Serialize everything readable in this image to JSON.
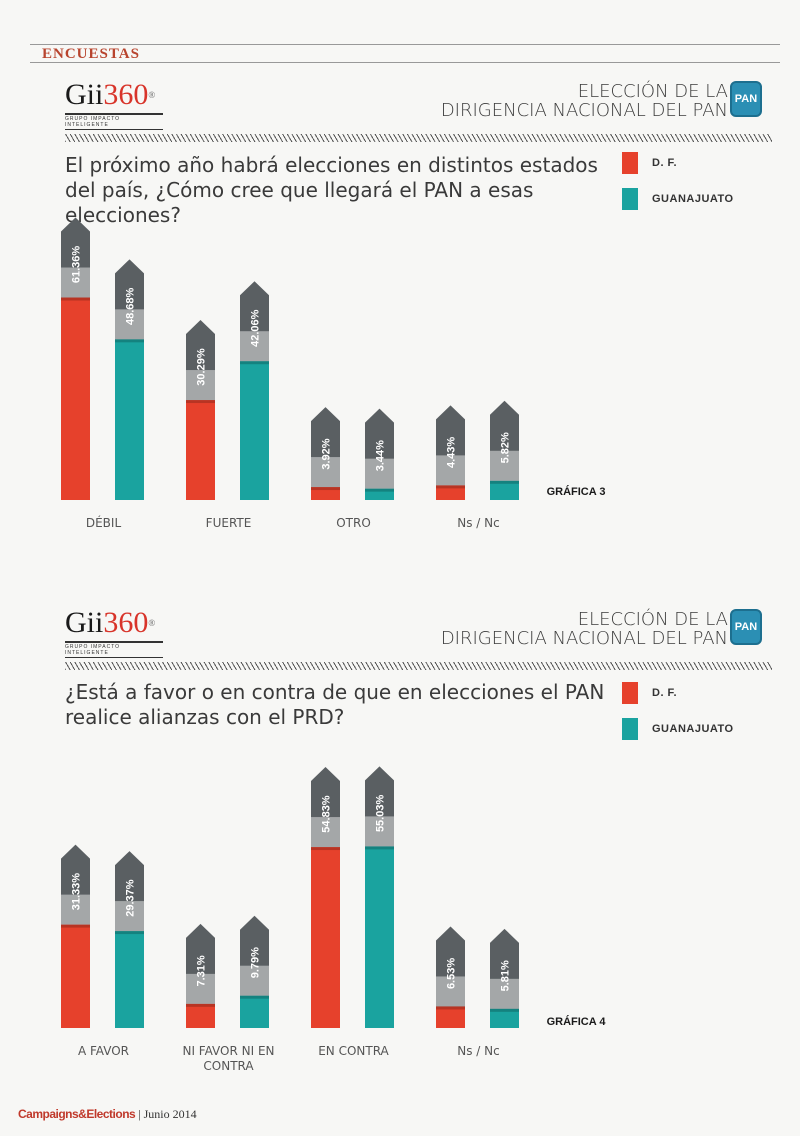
{
  "section": "ENCUESTAS",
  "colors": {
    "df": "#e6412c",
    "guanajuato": "#1aa39f",
    "tag": "#5a5f62"
  },
  "panels": [
    {
      "logo": {
        "brand_a": "Gii",
        "brand_b": "360",
        "reg": "®",
        "sub": "GRUPO IMPACTO INTELIGENTE"
      },
      "title_line1": "ELECCIÓN DE LA",
      "title_line2": "DIRIGENCIA NACIONAL DEL PAN",
      "badge": "PAN",
      "question": "El próximo año habrá elecciones en distintos estados del país, ¿Cómo cree que llegará el PAN a esas elecciones?",
      "legend": [
        "D. F.",
        "GUANAJUATO"
      ],
      "grafica": "GRÁFICA 3"
    },
    {
      "logo": {
        "brand_a": "Gii",
        "brand_b": "360",
        "reg": "®",
        "sub": "GRUPO IMPACTO INTELIGENTE"
      },
      "title_line1": "ELECCIÓN DE LA",
      "title_line2": "DIRIGENCIA NACIONAL DEL PAN",
      "badge": "PAN",
      "question": "¿Está a favor o en contra de que en elecciones el PAN realice alianzas con el PRD?",
      "legend": [
        "D. F.",
        "GUANAJUATO"
      ],
      "grafica": "GRÁFICA 4"
    }
  ],
  "chart_data": [
    {
      "type": "bar",
      "categories": [
        "DÉBIL",
        "FUERTE",
        "OTRO",
        "Ns / Nc"
      ],
      "series": [
        {
          "name": "D. F.",
          "values": [
            61.36,
            30.29,
            3.92,
            4.43
          ],
          "labels": [
            "61.36%",
            "30.29%",
            "3.92%",
            "4.43%"
          ]
        },
        {
          "name": "GUANAJUATO",
          "values": [
            48.68,
            42.06,
            3.44,
            5.82
          ],
          "labels": [
            "48.68%",
            "42.06%",
            "3.44%",
            "5.82%"
          ]
        }
      ],
      "ylim": [
        0,
        70
      ]
    },
    {
      "type": "bar",
      "categories": [
        "A FAVOR",
        "NI FAVOR NI EN CONTRA",
        "EN CONTRA",
        "Ns / Nc"
      ],
      "series": [
        {
          "name": "D. F.",
          "values": [
            31.33,
            7.31,
            54.83,
            6.53
          ],
          "labels": [
            "31.33%",
            "7.31%",
            "54.83%",
            "6.53%"
          ]
        },
        {
          "name": "GUANAJUATO",
          "values": [
            29.37,
            9.79,
            55.03,
            5.81
          ],
          "labels": [
            "29.37%",
            "9.79%",
            "55.03%",
            "5.81%"
          ]
        }
      ],
      "ylim": [
        0,
        70
      ]
    }
  ],
  "footer": {
    "brand": "Campaigns&Elections",
    "sep": "|",
    "date": "Junio 2014"
  }
}
